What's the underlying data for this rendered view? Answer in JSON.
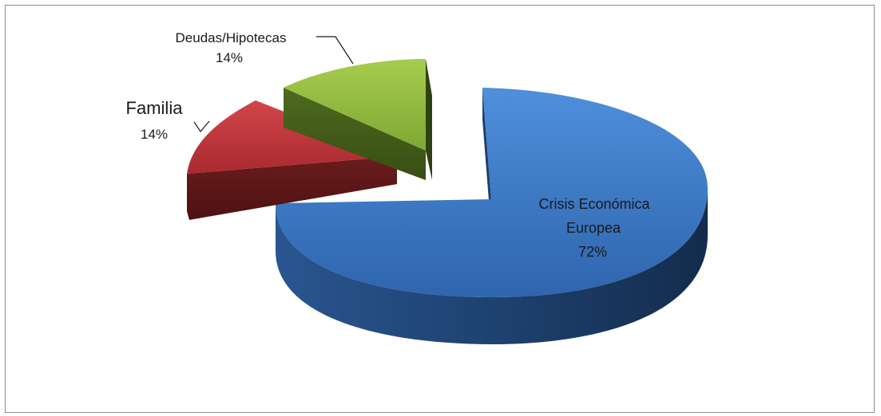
{
  "chart_data": {
    "type": "pie",
    "style": "3d-exploded",
    "title": "",
    "slices": [
      {
        "name": "Crisis Económica Europea",
        "label_lines": [
          "Crisis Económica",
          "Europea"
        ],
        "percent_label": "72%",
        "value": 72,
        "color": "#3a78c8"
      },
      {
        "name": "Familia",
        "label_lines": [
          "Familia"
        ],
        "percent_label": "14%",
        "value": 14,
        "color": "#c8373a"
      },
      {
        "name": "Deudas/Hipotecas",
        "label_lines": [
          "Deudas/Hipotecas"
        ],
        "percent_label": "14%",
        "value": 14,
        "color": "#8db83a"
      }
    ]
  }
}
